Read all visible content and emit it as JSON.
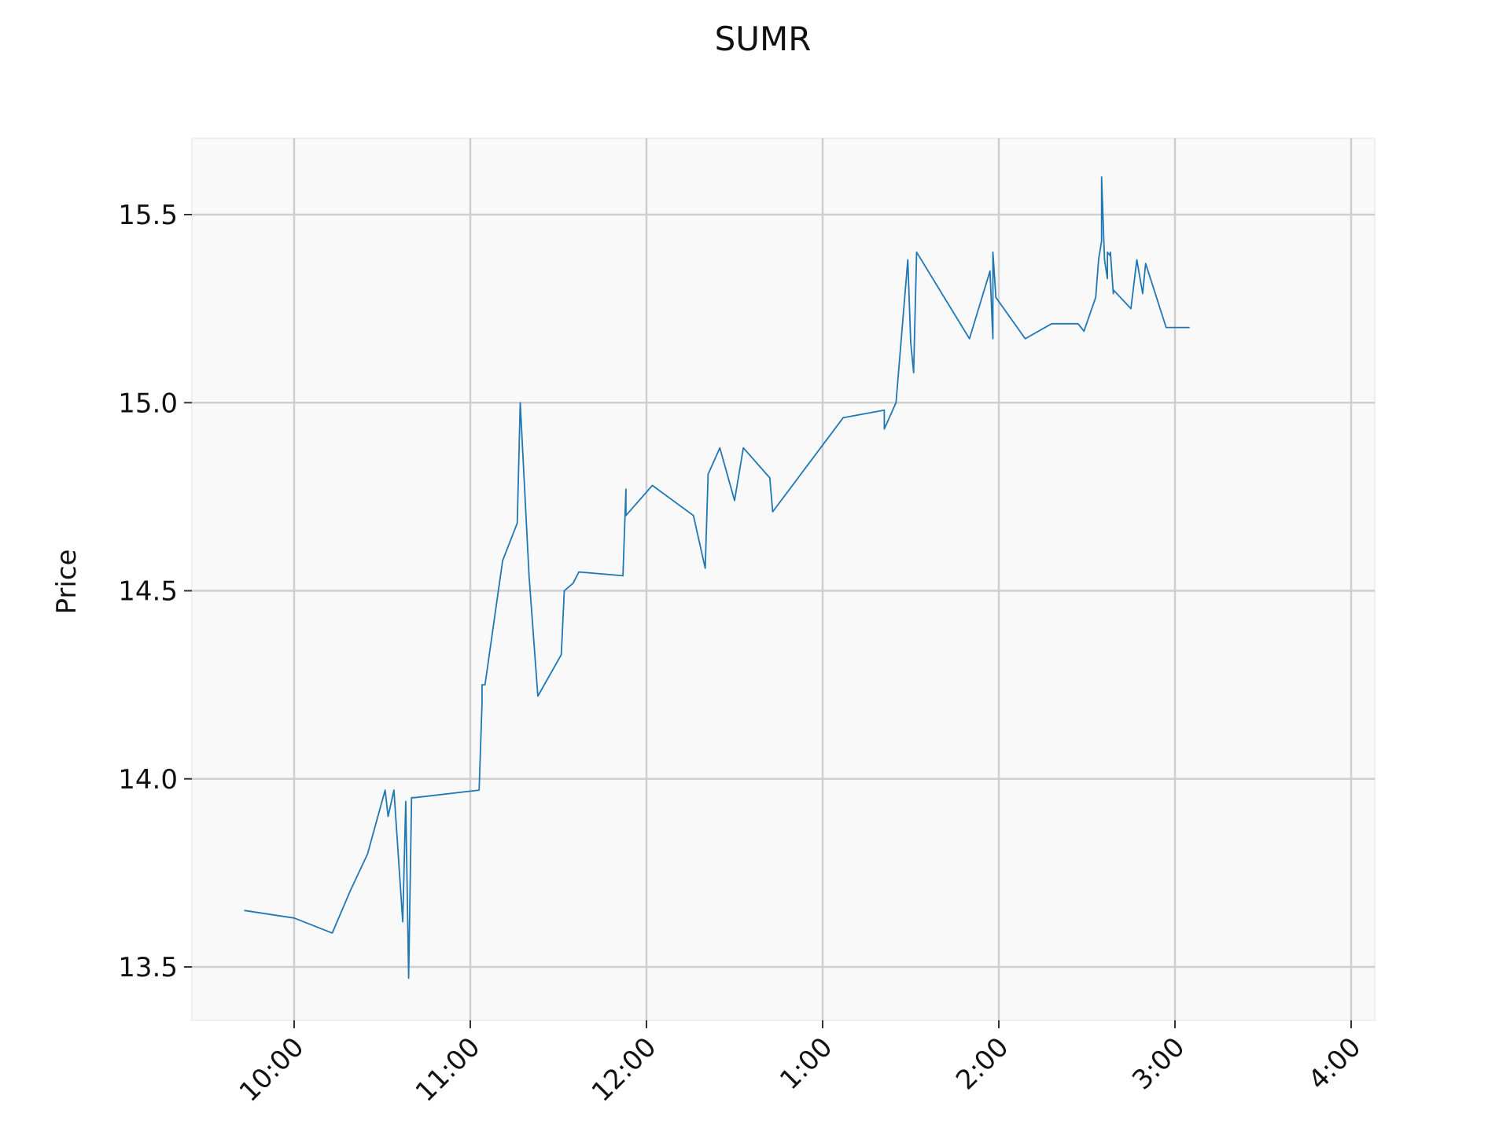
{
  "chart_data": {
    "type": "line",
    "title": "SUMR",
    "xlabel": "",
    "ylabel": "Price",
    "x_unit": "minutes since 9:00",
    "xlim": [
      28,
      188
    ],
    "ylim": [
      13.36,
      15.71
    ],
    "x_ticks": [
      {
        "value": 60,
        "label": "10:00"
      },
      {
        "value": 120,
        "label": "11:00"
      },
      {
        "value": 180,
        "label": "12:00"
      },
      {
        "value": 240,
        "label": "1:00"
      },
      {
        "value": 300,
        "label": "2:00"
      },
      {
        "value": 360,
        "label": "3:00"
      },
      {
        "value": 420,
        "label": "4:00"
      }
    ],
    "y_ticks": [
      {
        "value": 13.5,
        "label": "13.5"
      },
      {
        "value": 14.0,
        "label": "14.0"
      },
      {
        "value": 14.5,
        "label": "14.5"
      },
      {
        "value": 15.0,
        "label": "15.0"
      },
      {
        "value": 15.5,
        "label": "15.5"
      }
    ],
    "grid": true,
    "colors": {
      "line": "#1f77b4",
      "plot_bg": "#f9f9f9",
      "grid": "#cfcfcf"
    },
    "series": [
      {
        "x": [
          "9:43",
          "10:00",
          "10:13",
          "10:19",
          "10:25",
          "10:31",
          "10:32",
          "10:34",
          "10:37",
          "10:38",
          "10:39",
          "10:40",
          "10:41",
          "11:03",
          "11:04",
          "11:04",
          "11:05",
          "11:11",
          "11:16",
          "11:17",
          "11:20",
          "11:23",
          "11:31",
          "11:32",
          "11:35",
          "11:37",
          "11:52",
          "11:53",
          "11:53",
          "12:02",
          "12:16",
          "12:20",
          "12:21",
          "12:25",
          "12:30",
          "12:33",
          "12:42",
          "12:43",
          "13:07",
          "13:21",
          "13:21",
          "13:25",
          "13:29",
          "13:30",
          "13:31",
          "13:32",
          "13:50",
          "13:57",
          "13:58",
          "13:58",
          "13:59",
          "14:09",
          "14:18",
          "14:27",
          "14:29",
          "14:33",
          "14:34",
          "14:35",
          "14:35",
          "14:36",
          "14:37",
          "14:37",
          "14:38",
          "14:38",
          "14:39",
          "14:39",
          "14:45",
          "14:47",
          "14:49",
          "14:50",
          "14:57",
          "14:58",
          "15:02",
          "15:03",
          "15:04",
          "15:05"
        ],
        "y": [
          13.65,
          13.63,
          13.59,
          13.7,
          13.8,
          13.97,
          13.9,
          13.97,
          13.62,
          13.94,
          13.47,
          13.95,
          13.95,
          13.97,
          14.2,
          14.25,
          14.25,
          14.58,
          14.68,
          15.0,
          14.54,
          14.22,
          14.33,
          14.5,
          14.52,
          14.55,
          14.54,
          14.77,
          14.7,
          14.78,
          14.7,
          14.56,
          14.81,
          14.88,
          14.74,
          14.88,
          14.8,
          14.71,
          14.96,
          14.98,
          14.93,
          15.0,
          15.38,
          15.16,
          15.08,
          15.4,
          15.17,
          15.35,
          15.17,
          15.4,
          15.28,
          15.17,
          15.21,
          15.21,
          15.19,
          15.28,
          15.38,
          15.43,
          15.6,
          15.38,
          15.33,
          15.4,
          15.39,
          15.4,
          15.29,
          15.3,
          15.25,
          15.38,
          15.29,
          15.37,
          15.2,
          15.2,
          15.2,
          15.2,
          15.2,
          15.2
        ]
      }
    ]
  }
}
